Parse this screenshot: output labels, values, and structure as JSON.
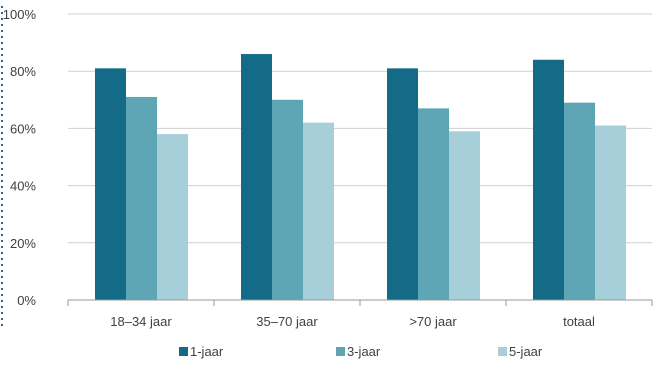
{
  "chart_data": {
    "type": "bar",
    "title": "",
    "xlabel": "",
    "ylabel": "",
    "categories": [
      "18–34 jaar",
      "35–70 jaar",
      ">70 jaar",
      "totaal"
    ],
    "series": [
      {
        "name": "1-jaar",
        "color": "#136b87",
        "values": [
          81,
          86,
          81,
          84
        ]
      },
      {
        "name": "3-jaar",
        "color": "#5ea5b6",
        "values": [
          71,
          70,
          67,
          69
        ]
      },
      {
        "name": "5-jaar",
        "color": "#a6cfd9",
        "values": [
          58,
          62,
          59,
          61
        ]
      }
    ],
    "ylim": [
      0,
      100
    ],
    "yticks": [
      "0%",
      "20%",
      "40%",
      "60%",
      "80%",
      "100%"
    ],
    "grid": true,
    "legend_position": "bottom",
    "colors": {
      "grid": "#cfcfcf",
      "axis": "#9a9a9a",
      "text": "#404040",
      "accent_border": "#1f6f8a"
    }
  }
}
